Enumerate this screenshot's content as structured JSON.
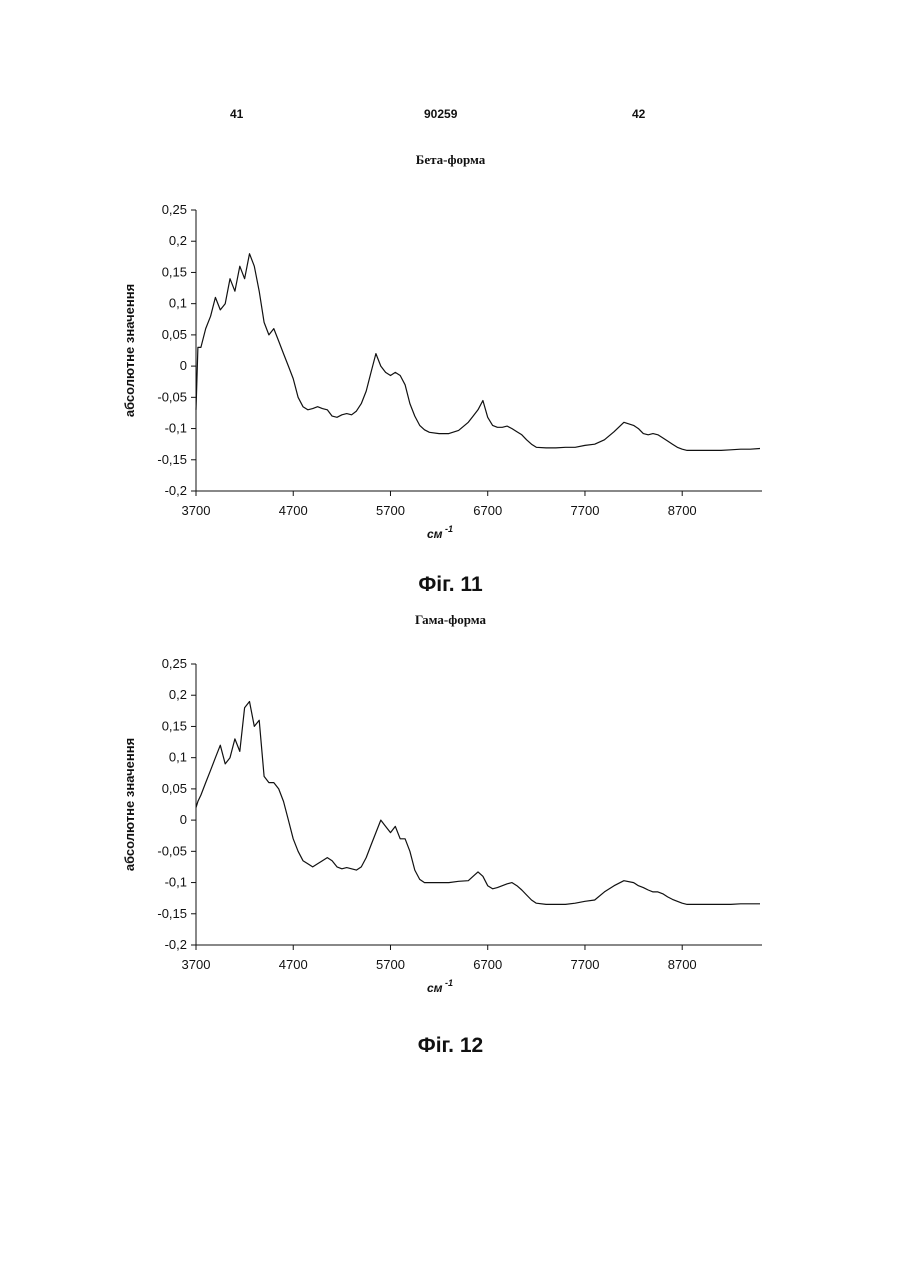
{
  "page": {
    "left_number": "41",
    "center_number": "90259",
    "right_number": "42"
  },
  "chart_data": [
    {
      "type": "line",
      "title": "Бета-форма",
      "caption": "Фіг. 11",
      "xlabel": "см",
      "xlabel_sup": "-1",
      "ylabel": "абсолютне значення",
      "ylim": [
        -0.2,
        0.25
      ],
      "xlim": [
        3700,
        9500
      ],
      "yticks": [
        "0,25",
        "0,2",
        "0,15",
        "0,1",
        "0,05",
        "0",
        "-0,05",
        "-0,1",
        "-0,15",
        "-0,2"
      ],
      "ytick_values": [
        0.25,
        0.2,
        0.15,
        0.1,
        0.05,
        0,
        -0.05,
        -0.1,
        -0.15,
        -0.2
      ],
      "xticks": [
        "3700",
        "4700",
        "5700",
        "6700",
        "7700",
        "8700"
      ],
      "xtick_values": [
        3700,
        4700,
        5700,
        6700,
        7700,
        8700
      ],
      "x": [
        3700,
        3720,
        3750,
        3800,
        3850,
        3900,
        3950,
        4000,
        4050,
        4100,
        4150,
        4200,
        4250,
        4300,
        4350,
        4400,
        4450,
        4500,
        4550,
        4600,
        4650,
        4700,
        4750,
        4800,
        4850,
        4900,
        4950,
        5000,
        5050,
        5100,
        5150,
        5200,
        5250,
        5300,
        5350,
        5400,
        5450,
        5500,
        5550,
        5600,
        5650,
        5700,
        5750,
        5800,
        5850,
        5900,
        5950,
        6000,
        6050,
        6100,
        6200,
        6300,
        6400,
        6500,
        6550,
        6600,
        6650,
        6700,
        6750,
        6800,
        6850,
        6900,
        6950,
        7000,
        7050,
        7100,
        7150,
        7200,
        7300,
        7400,
        7500,
        7600,
        7700,
        7800,
        7900,
        8000,
        8100,
        8200,
        8250,
        8300,
        8350,
        8400,
        8450,
        8500,
        8550,
        8600,
        8650,
        8700,
        8750,
        8800,
        8850,
        8900,
        8950,
        9000,
        9100,
        9200,
        9300,
        9400,
        9500
      ],
      "y": [
        -0.07,
        0.03,
        0.03,
        0.06,
        0.08,
        0.11,
        0.09,
        0.1,
        0.14,
        0.12,
        0.16,
        0.14,
        0.18,
        0.16,
        0.12,
        0.07,
        0.05,
        0.06,
        0.04,
        0.02,
        0.0,
        -0.02,
        -0.05,
        -0.065,
        -0.07,
        -0.068,
        -0.065,
        -0.068,
        -0.07,
        -0.08,
        -0.082,
        -0.078,
        -0.076,
        -0.078,
        -0.072,
        -0.06,
        -0.04,
        -0.01,
        0.02,
        0.0,
        -0.01,
        -0.015,
        -0.01,
        -0.015,
        -0.03,
        -0.06,
        -0.08,
        -0.095,
        -0.102,
        -0.106,
        -0.108,
        -0.108,
        -0.103,
        -0.09,
        -0.08,
        -0.07,
        -0.055,
        -0.082,
        -0.095,
        -0.098,
        -0.098,
        -0.096,
        -0.1,
        -0.105,
        -0.11,
        -0.118,
        -0.125,
        -0.13,
        -0.131,
        -0.131,
        -0.13,
        -0.13,
        -0.127,
        -0.125,
        -0.118,
        -0.105,
        -0.09,
        -0.095,
        -0.1,
        -0.108,
        -0.11,
        -0.108,
        -0.11,
        -0.115,
        -0.12,
        -0.125,
        -0.13,
        -0.133,
        -0.135,
        -0.135,
        -0.135,
        -0.135,
        -0.135,
        -0.135,
        -0.135,
        -0.134,
        -0.133,
        -0.133,
        -0.132
      ]
    },
    {
      "type": "line",
      "title": "Гама-форма",
      "caption": "Фіг. 12",
      "xlabel": "см",
      "xlabel_sup": "-1",
      "ylabel": "абсолютне значення",
      "ylim": [
        -0.2,
        0.25
      ],
      "xlim": [
        3700,
        9500
      ],
      "yticks": [
        "0,25",
        "0,2",
        "0,15",
        "0,1",
        "0,05",
        "0",
        "-0,05",
        "-0,1",
        "-0,15",
        "-0,2"
      ],
      "ytick_values": [
        0.25,
        0.2,
        0.15,
        0.1,
        0.05,
        0,
        -0.05,
        -0.1,
        -0.15,
        -0.2
      ],
      "xticks": [
        "3700",
        "4700",
        "5700",
        "6700",
        "7700",
        "8700"
      ],
      "xtick_values": [
        3700,
        4700,
        5700,
        6700,
        7700,
        8700
      ],
      "x": [
        3700,
        3720,
        3750,
        3800,
        3850,
        3900,
        3950,
        4000,
        4050,
        4100,
        4150,
        4200,
        4250,
        4300,
        4350,
        4400,
        4450,
        4500,
        4550,
        4600,
        4650,
        4700,
        4750,
        4800,
        4850,
        4900,
        4950,
        5000,
        5050,
        5100,
        5150,
        5200,
        5250,
        5300,
        5350,
        5400,
        5450,
        5500,
        5550,
        5600,
        5650,
        5700,
        5750,
        5800,
        5850,
        5900,
        5950,
        6000,
        6050,
        6100,
        6200,
        6300,
        6400,
        6500,
        6550,
        6600,
        6650,
        6700,
        6750,
        6800,
        6850,
        6900,
        6950,
        7000,
        7050,
        7100,
        7150,
        7200,
        7300,
        7400,
        7500,
        7600,
        7700,
        7800,
        7900,
        8000,
        8100,
        8200,
        8250,
        8300,
        8350,
        8400,
        8450,
        8500,
        8550,
        8600,
        8650,
        8700,
        8750,
        8800,
        8850,
        8900,
        8950,
        9000,
        9100,
        9200,
        9300,
        9400,
        9500
      ],
      "y": [
        0.02,
        0.03,
        0.04,
        0.06,
        0.08,
        0.1,
        0.12,
        0.09,
        0.1,
        0.13,
        0.11,
        0.18,
        0.19,
        0.15,
        0.16,
        0.07,
        0.06,
        0.06,
        0.05,
        0.03,
        0.0,
        -0.03,
        -0.05,
        -0.065,
        -0.07,
        -0.075,
        -0.07,
        -0.065,
        -0.06,
        -0.065,
        -0.075,
        -0.078,
        -0.076,
        -0.078,
        -0.08,
        -0.075,
        -0.06,
        -0.04,
        -0.02,
        0.0,
        -0.01,
        -0.02,
        -0.01,
        -0.03,
        -0.03,
        -0.05,
        -0.08,
        -0.095,
        -0.1,
        -0.1,
        -0.1,
        -0.1,
        -0.098,
        -0.097,
        -0.09,
        -0.083,
        -0.09,
        -0.105,
        -0.11,
        -0.108,
        -0.105,
        -0.102,
        -0.1,
        -0.105,
        -0.112,
        -0.12,
        -0.128,
        -0.133,
        -0.135,
        -0.135,
        -0.135,
        -0.133,
        -0.13,
        -0.128,
        -0.115,
        -0.105,
        -0.097,
        -0.1,
        -0.105,
        -0.108,
        -0.112,
        -0.115,
        -0.115,
        -0.118,
        -0.123,
        -0.127,
        -0.13,
        -0.133,
        -0.135,
        -0.135,
        -0.135,
        -0.135,
        -0.135,
        -0.135,
        -0.135,
        -0.135,
        -0.134,
        -0.134,
        -0.134
      ]
    }
  ]
}
